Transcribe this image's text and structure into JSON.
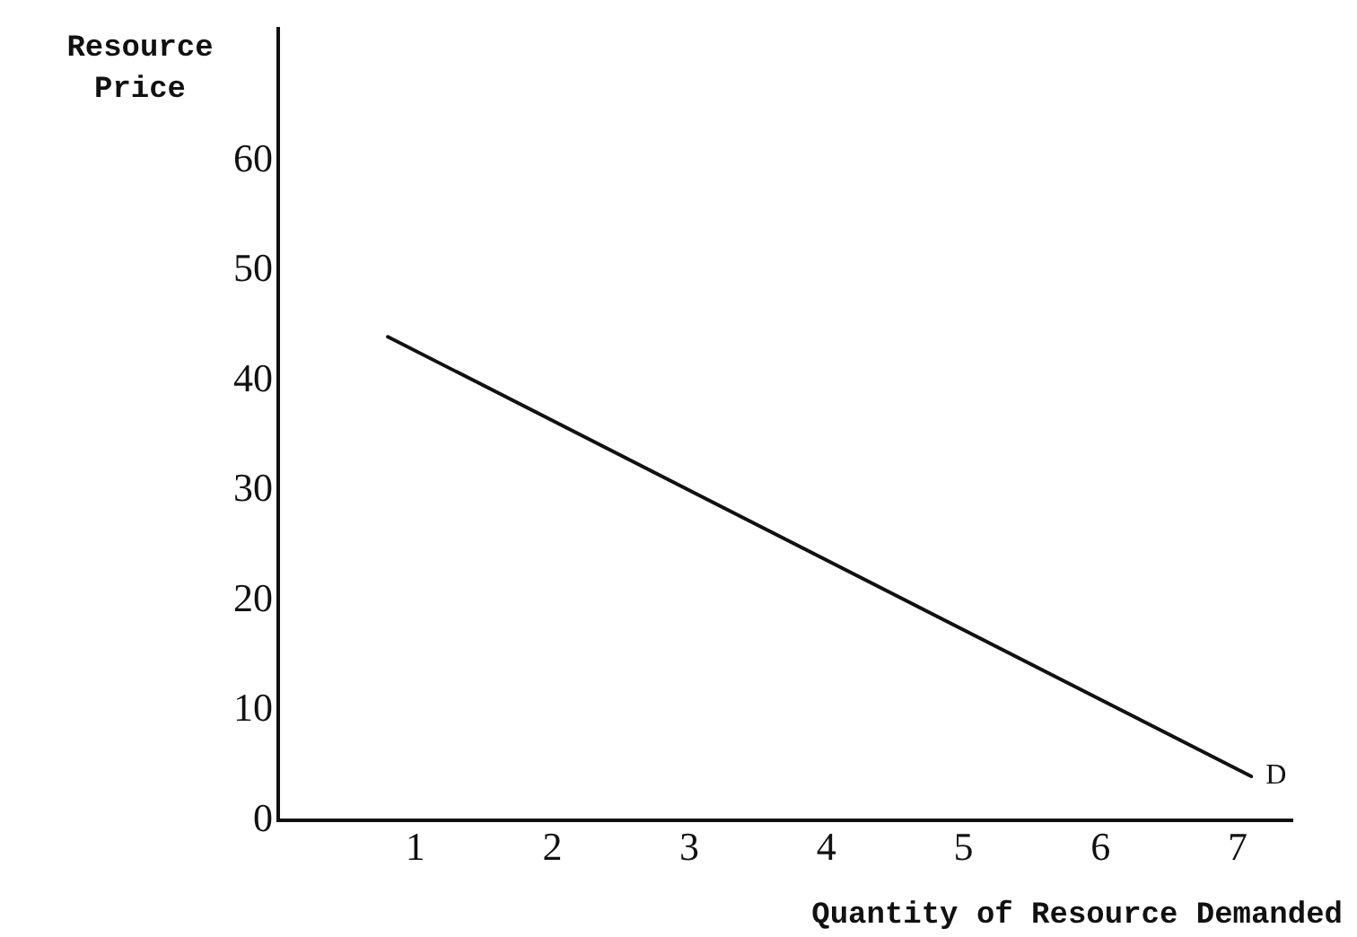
{
  "chart_data": {
    "type": "line",
    "xlabel": "Quantity of Resource Demanded",
    "ylabel": "Resource Price",
    "x": [
      0.8,
      7.1
    ],
    "series": [
      {
        "color": "#111111",
        "values": [
          44,
          4
        ]
      }
    ],
    "xlim": [
      0,
      7.4
    ],
    "xticks": [
      1,
      2,
      3,
      4,
      5,
      6,
      7
    ],
    "ylim": [
      0,
      72
    ],
    "yticks": [
      0,
      10,
      20,
      30,
      40,
      50,
      60
    ],
    "annotations": [
      {
        "text": "D",
        "x": 7.1,
        "y": 4
      }
    ],
    "grid": false,
    "legend": false,
    "marker": "none",
    "line_style": "solid"
  }
}
